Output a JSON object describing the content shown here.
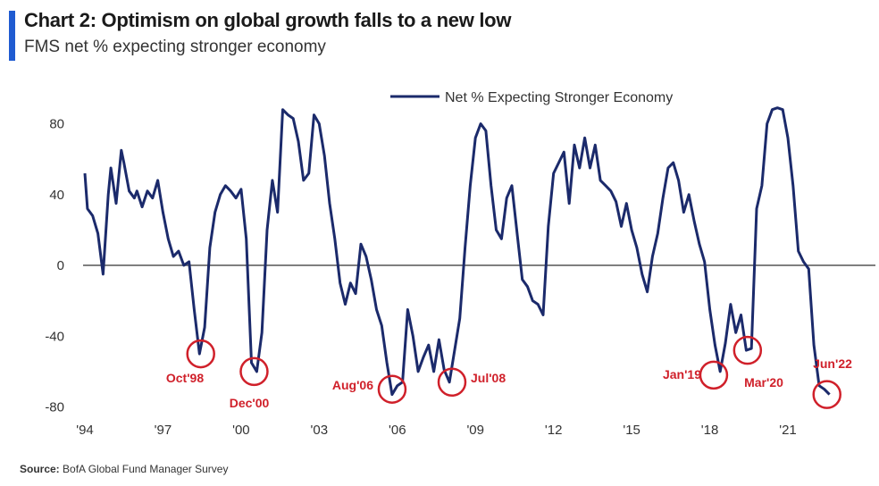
{
  "header": {
    "title": "Chart 2: Optimism on global growth falls to a new low",
    "subtitle": "FMS net % expecting stronger economy"
  },
  "footer": {
    "source_label": "Source:",
    "source_text": "BofA Global Fund Manager Survey"
  },
  "colors": {
    "accent": "#1f5bd1",
    "series": "#1b2a6b",
    "annotation": "#d0202a",
    "zero_line": "#555555"
  },
  "chart_data": {
    "type": "line",
    "title": "Chart 2: Optimism on global growth falls to a new low",
    "subtitle": "FMS net % expecting stronger economy",
    "xlabel": "",
    "ylabel": "",
    "xlim": [
      1994,
      2024.5
    ],
    "ylim": [
      -85,
      95
    ],
    "y_ticks": [
      80,
      40,
      0,
      -40,
      -80
    ],
    "y_tick_labels": [
      "80",
      "40",
      "0",
      "-40",
      "-80"
    ],
    "x_ticks": [
      1994,
      1997,
      2000,
      2003,
      2006,
      2009,
      2012,
      2015,
      2018,
      2021
    ],
    "x_tick_labels": [
      "'94",
      "'97",
      "'00",
      "'03",
      "'06",
      "'09",
      "'12",
      "'15",
      "'18",
      "'21"
    ],
    "grid": false,
    "zero_line": true,
    "legend": {
      "position": "top-right",
      "entries": [
        "Net % Expecting Stronger Economy"
      ]
    },
    "series": [
      {
        "name": "Net % Expecting Stronger Economy",
        "x": [
          1994.0,
          1994.1,
          1994.3,
          1994.5,
          1994.7,
          1994.9,
          1995.0,
          1995.2,
          1995.4,
          1995.5,
          1995.7,
          1995.9,
          1996.0,
          1996.2,
          1996.4,
          1996.6,
          1996.8,
          1997.0,
          1997.2,
          1997.4,
          1997.6,
          1997.8,
          1998.0,
          1998.2,
          1998.4,
          1998.6,
          1998.8,
          1999.0,
          1999.2,
          1999.4,
          1999.6,
          1999.8,
          2000.0,
          2000.2,
          2000.4,
          2000.6,
          2000.8,
          2001.0,
          2001.2,
          2001.4,
          2001.6,
          2001.8,
          2002.0,
          2002.2,
          2002.4,
          2002.6,
          2002.8,
          2003.0,
          2003.2,
          2003.4,
          2003.6,
          2003.8,
          2004.0,
          2004.2,
          2004.4,
          2004.6,
          2004.8,
          2005.0,
          2005.2,
          2005.4,
          2005.6,
          2005.8,
          2006.0,
          2006.2,
          2006.4,
          2006.6,
          2006.8,
          2007.0,
          2007.2,
          2007.4,
          2007.6,
          2007.8,
          2008.0,
          2008.2,
          2008.4,
          2008.6,
          2008.8,
          2009.0,
          2009.2,
          2009.4,
          2009.6,
          2009.8,
          2010.0,
          2010.2,
          2010.4,
          2010.6,
          2010.8,
          2011.0,
          2011.2,
          2011.4,
          2011.6,
          2011.8,
          2012.0,
          2012.2,
          2012.4,
          2012.6,
          2012.8,
          2013.0,
          2013.2,
          2013.4,
          2013.6,
          2013.8,
          2014.0,
          2014.2,
          2014.4,
          2014.6,
          2014.8,
          2015.0,
          2015.2,
          2015.4,
          2015.6,
          2015.8,
          2016.0,
          2016.2,
          2016.4,
          2016.6,
          2016.8,
          2017.0,
          2017.2,
          2017.4,
          2017.6,
          2017.8,
          2018.0,
          2018.2,
          2018.4,
          2018.6,
          2018.8,
          2019.0,
          2019.2,
          2019.4,
          2019.6,
          2019.8,
          2020.0,
          2020.2,
          2020.4,
          2020.6,
          2020.8,
          2021.0,
          2021.2,
          2021.4,
          2021.6,
          2021.8,
          2022.0,
          2022.2,
          2022.4,
          2022.6
        ],
        "values": [
          52,
          32,
          28,
          18,
          -5,
          40,
          55,
          35,
          65,
          58,
          42,
          38,
          42,
          33,
          42,
          38,
          48,
          30,
          15,
          5,
          8,
          0,
          2,
          -25,
          -50,
          -35,
          10,
          30,
          40,
          45,
          42,
          38,
          43,
          15,
          -55,
          -60,
          -38,
          20,
          48,
          30,
          88,
          85,
          83,
          70,
          48,
          52,
          85,
          80,
          62,
          35,
          15,
          -10,
          -22,
          -10,
          -16,
          12,
          5,
          -8,
          -25,
          -34,
          -55,
          -73,
          -68,
          -66,
          -25,
          -40,
          -60,
          -52,
          -45,
          -60,
          -42,
          -59,
          -66,
          -48,
          -30,
          10,
          45,
          72,
          80,
          76,
          45,
          20,
          15,
          38,
          45,
          18,
          -8,
          -12,
          -20,
          -22,
          -28,
          22,
          52,
          58,
          64,
          35,
          68,
          55,
          72,
          55,
          68,
          48,
          45,
          42,
          36,
          22,
          35,
          20,
          10,
          -5,
          -15,
          5,
          18,
          38,
          55,
          58,
          48,
          30,
          40,
          25,
          12,
          2,
          -25,
          -45,
          -60,
          -44,
          -22,
          -38,
          -28,
          -48,
          -47,
          32,
          45,
          80,
          88,
          89,
          88,
          72,
          45,
          8,
          2,
          -2,
          -45,
          -68,
          -70,
          -73
        ]
      }
    ],
    "annotations": [
      {
        "label": "Oct'98",
        "x": 1998.45,
        "y": -50
      },
      {
        "label": "Dec'00",
        "x": 2000.5,
        "y": -60
      },
      {
        "label": "Aug'06",
        "x": 2005.8,
        "y": -70
      },
      {
        "label": "Jul'08",
        "x": 2008.1,
        "y": -66
      },
      {
        "label": "Jan'19",
        "x": 2018.15,
        "y": -62
      },
      {
        "label": "Mar'20",
        "x": 2019.45,
        "y": -48
      },
      {
        "label": "Jun'22",
        "x": 2022.5,
        "y": -73
      }
    ]
  }
}
